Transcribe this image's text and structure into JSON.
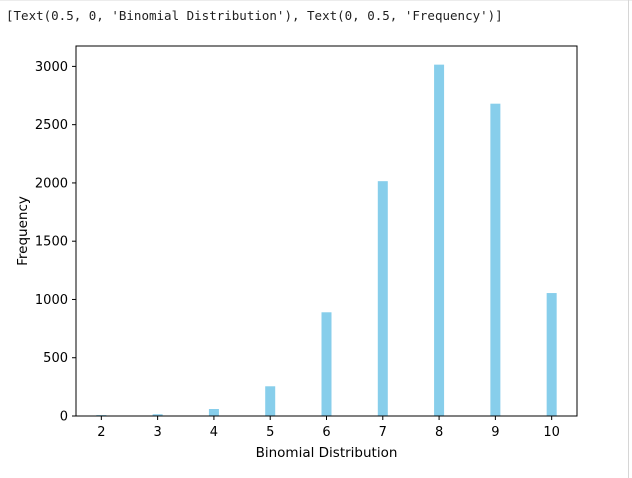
{
  "output_text": "[Text(0.5, 0, 'Binomial Distribution'), Text(0, 0.5, 'Frequency')]",
  "chart_data": {
    "type": "bar",
    "x": [
      2,
      3,
      4,
      5,
      6,
      7,
      8,
      9,
      10
    ],
    "values": [
      8,
      15,
      60,
      255,
      890,
      2015,
      3015,
      2680,
      1055
    ],
    "xlabel": "Binomial Distribution",
    "ylabel": "Frequency",
    "xlim": [
      1.55,
      10.45
    ],
    "ylim": [
      0,
      3175
    ],
    "xticks": [
      "2",
      "3",
      "4",
      "5",
      "6",
      "7",
      "8",
      "9",
      "10"
    ],
    "yticks": [
      "0",
      "500",
      "1000",
      "1500",
      "2000",
      "2500",
      "3000"
    ],
    "bar_color": "#87ceeb",
    "grid": false,
    "legend": "none"
  }
}
